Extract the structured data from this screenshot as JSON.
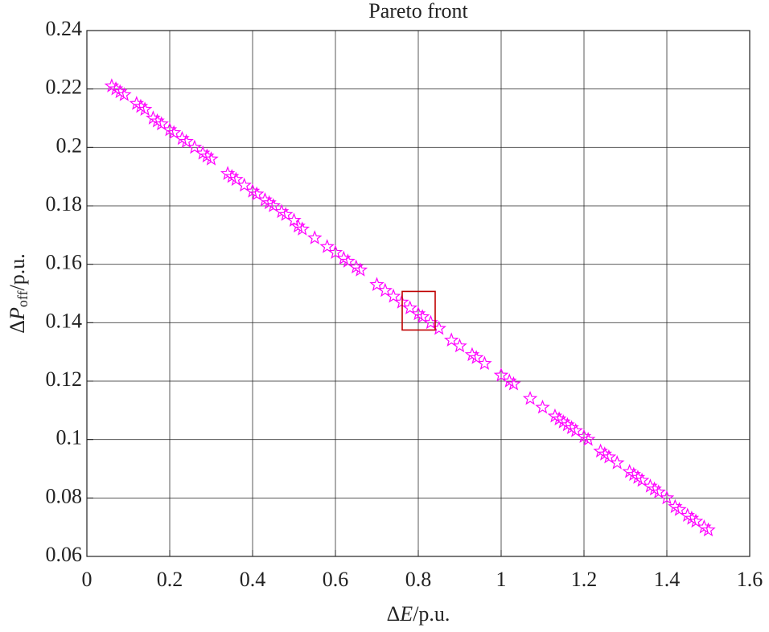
{
  "chart_data": {
    "type": "scatter",
    "title": "Pareto front",
    "x_label": [
      "Δ",
      "E",
      "/p.u."
    ],
    "y_label": [
      "Δ",
      "P",
      "off",
      "/p.u."
    ],
    "xlim": [
      0,
      1.6
    ],
    "xticks": [
      0,
      0.2,
      0.4,
      0.6,
      0.8,
      1,
      1.2,
      1.4,
      1.6
    ],
    "ylim": [
      0.06,
      0.24
    ],
    "yticks": [
      0.06,
      0.08,
      0.1,
      0.12,
      0.14,
      0.16,
      0.18,
      0.2,
      0.22,
      0.24
    ],
    "grid": true,
    "marker": "star",
    "series": [
      {
        "color": "#ff00ff",
        "x": [
          0.06,
          0.07,
          0.08,
          0.09,
          0.12,
          0.13,
          0.14,
          0.16,
          0.17,
          0.18,
          0.2,
          0.21,
          0.23,
          0.24,
          0.26,
          0.28,
          0.29,
          0.3,
          0.34,
          0.35,
          0.36,
          0.38,
          0.4,
          0.41,
          0.43,
          0.44,
          0.45,
          0.47,
          0.48,
          0.5,
          0.51,
          0.52,
          0.55,
          0.58,
          0.6,
          0.62,
          0.63,
          0.65,
          0.66,
          0.7,
          0.72,
          0.74,
          0.76,
          0.78,
          0.8,
          0.81,
          0.83,
          0.85,
          0.88,
          0.9,
          0.93,
          0.94,
          0.96,
          1.0,
          1.02,
          1.03,
          1.07,
          1.1,
          1.13,
          1.14,
          1.15,
          1.16,
          1.17,
          1.18,
          1.2,
          1.21,
          1.24,
          1.25,
          1.26,
          1.28,
          1.31,
          1.32,
          1.33,
          1.34,
          1.36,
          1.37,
          1.38,
          1.4,
          1.42,
          1.43,
          1.45,
          1.46,
          1.47,
          1.49,
          1.5
        ],
        "values": [
          0.221,
          0.22,
          0.219,
          0.218,
          0.215,
          0.214,
          0.213,
          0.21,
          0.209,
          0.208,
          0.206,
          0.205,
          0.203,
          0.202,
          0.2,
          0.198,
          0.197,
          0.196,
          0.191,
          0.19,
          0.189,
          0.187,
          0.185,
          0.184,
          0.182,
          0.181,
          0.18,
          0.178,
          0.177,
          0.175,
          0.173,
          0.172,
          0.169,
          0.166,
          0.164,
          0.162,
          0.161,
          0.159,
          0.158,
          0.153,
          0.151,
          0.149,
          0.147,
          0.145,
          0.143,
          0.142,
          0.14,
          0.138,
          0.134,
          0.132,
          0.129,
          0.128,
          0.126,
          0.122,
          0.12,
          0.119,
          0.114,
          0.111,
          0.108,
          0.107,
          0.106,
          0.105,
          0.104,
          0.103,
          0.101,
          0.1,
          0.096,
          0.095,
          0.094,
          0.092,
          0.089,
          0.088,
          0.087,
          0.086,
          0.084,
          0.083,
          0.082,
          0.08,
          0.077,
          0.076,
          0.074,
          0.073,
          0.072,
          0.07,
          0.069
        ]
      }
    ],
    "highlight": {
      "x": 0.8,
      "y": 0.143,
      "color": "#c00000"
    }
  }
}
